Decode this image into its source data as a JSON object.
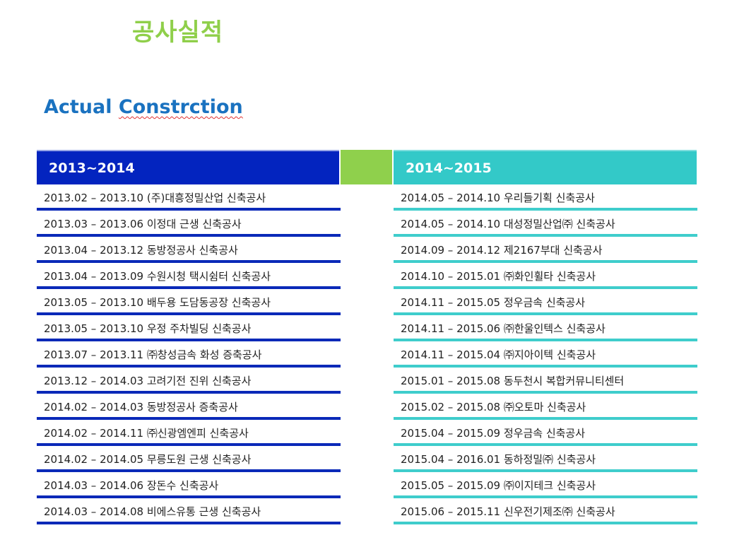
{
  "page": {
    "title": "공사실적",
    "subtitle_word1": "Actual",
    "subtitle_word2": "Constrction"
  },
  "left": {
    "header": "2013~2014",
    "rows": [
      "2013.02 – 2013.10  (주)대흥정밀산업  신축공사",
      "2013.03 – 2013.06  이정대  근생  신축공사",
      "2013.04 – 2013.12  동방정공사  신축공사",
      "2013.04 – 2013.09  수원시청  택시쉼터  신축공사",
      "2013.05 – 2013.10  배두용  도담동공장  신축공사",
      "2013.05 – 2013.10  우정  주차빌딩  신축공사",
      "2013.07 – 2013.11  ㈜창성금속  화성  증축공사",
      "2013.12 – 2014.03  고려기전  진위  신축공사",
      "2014.02 – 2014.03  동방정공사  증축공사",
      "2014.02 – 2014.11  ㈜신광엠엔피  신축공사",
      "2014.02 – 2014.05  무릉도원  근생  신축공사",
      "2014.03 – 2014.06  장돈수  신축공사",
      "2014.03 – 2014.08  비에스유통  근생  신축공사"
    ]
  },
  "right": {
    "header": "2014~2015",
    "rows": [
      "2014.05 – 2014.10  우리들기획  신축공사",
      "2014.05 – 2014.10  대성정밀산업㈜  신축공사",
      "2014.09 – 2014.12  제2167부대  신축공사",
      "2014.10 – 2015.01  ㈜화인휠타  신축공사",
      "2014.11 – 2015.05  정우금속  신축공사",
      "2014.11 – 2015.06  ㈜한울인텍스  신축공사",
      "2014.11 – 2015.04  ㈜지아이텍  신축공사",
      "2015.01 – 2015.08  동두천시  복합커뮤니티센터",
      "2015.02 – 2015.08  ㈜오토마  신축공사",
      "2015.04 – 2015.09  정우금속  신축공사",
      "2015.04 – 2016.01  동하정밀㈜  신축공사",
      "2015.05 – 2015.09  ㈜이지테크  신축공사",
      "2015.06 – 2015.11  신우전기제조㈜  신축공사"
    ]
  },
  "colors": {
    "title_green": "#8fcf4a",
    "subtitle_blue": "#1a72c0",
    "left_header": "#0324bf",
    "middle_block": "#8fd04c",
    "right_header": "#33c9c8"
  }
}
